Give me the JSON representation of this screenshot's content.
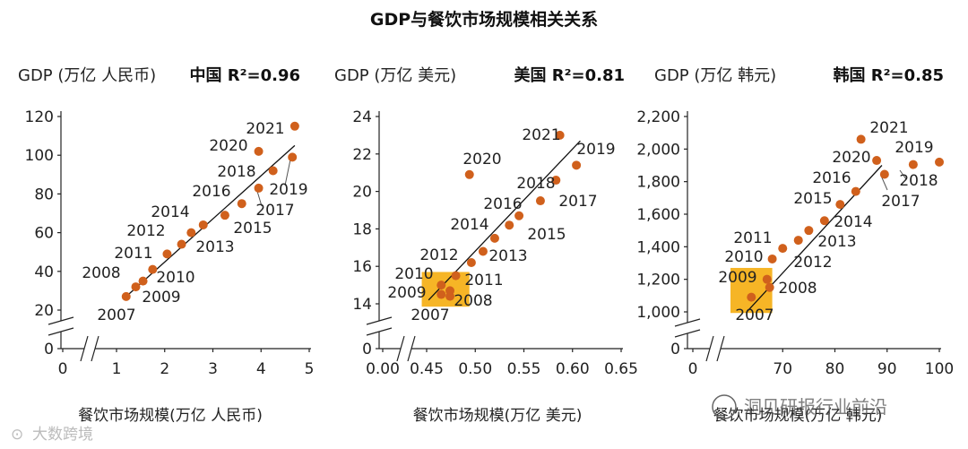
{
  "figure_title": "GDP与餐饮市场规模相关关系",
  "watermark": "洞见研报行业前沿",
  "watermark_left": "大数跨境",
  "chart_data": [
    {
      "id": "china",
      "type": "scatter",
      "ylabel": "GDP (万亿 人民币)",
      "r2_label": "中国 R²=0.96",
      "xlabel": "餐饮市场规模(万亿 人民币)",
      "x_ticks": [
        "0",
        "1",
        "2",
        "3",
        "4",
        "5"
      ],
      "y_ticks": [
        "0",
        "20",
        "40",
        "60",
        "80",
        "100",
        "120"
      ],
      "x_break": [
        0,
        1
      ],
      "y_break": [
        0,
        20
      ],
      "highlight": null,
      "fit": [
        [
          1.2,
          27
        ],
        [
          4.7,
          105
        ]
      ],
      "points": [
        {
          "year": "2007",
          "x": 1.2,
          "y": 27
        },
        {
          "year": "2008",
          "x": 1.4,
          "y": 32
        },
        {
          "year": "2009",
          "x": 1.55,
          "y": 35
        },
        {
          "year": "2010",
          "x": 1.75,
          "y": 41
        },
        {
          "year": "2011",
          "x": 2.05,
          "y": 49
        },
        {
          "year": "2012",
          "x": 2.35,
          "y": 54
        },
        {
          "year": "2013",
          "x": 2.55,
          "y": 60
        },
        {
          "year": "2014",
          "x": 2.8,
          "y": 64
        },
        {
          "year": "2015",
          "x": 3.25,
          "y": 69
        },
        {
          "year": "2016",
          "x": 3.6,
          "y": 75
        },
        {
          "year": "2017",
          "x": 3.95,
          "y": 83
        },
        {
          "year": "2018",
          "x": 4.25,
          "y": 92
        },
        {
          "year": "2019",
          "x": 4.65,
          "y": 99
        },
        {
          "year": "2020",
          "x": 3.95,
          "y": 102
        },
        {
          "year": "2021",
          "x": 4.7,
          "y": 115
        }
      ]
    },
    {
      "id": "usa",
      "type": "scatter",
      "ylabel": "GDP (万亿 美元)",
      "r2_label": "美国 R²=0.81",
      "xlabel": "餐饮市场规模(万亿 美元)",
      "x_ticks": [
        "0.00",
        "0.45",
        "0.50",
        "0.55",
        "0.60",
        "0.65"
      ],
      "y_ticks": [
        "0",
        "14",
        "16",
        "18",
        "20",
        "22",
        "24"
      ],
      "x_break": [
        0,
        0.45
      ],
      "y_break": [
        0,
        14
      ],
      "highlight": {
        "x0": 0.4,
        "x1": 0.494,
        "y0": 13.1,
        "y1": 15.7
      },
      "fit": [
        [
          0.452,
          14.2
        ],
        [
          0.608,
          22.7
        ]
      ],
      "points": [
        {
          "year": "2007",
          "x": 0.465,
          "y": 14.5
        },
        {
          "year": "2008",
          "x": 0.474,
          "y": 14.7
        },
        {
          "year": "2009",
          "x": 0.474,
          "y": 14.4
        },
        {
          "year": "2010",
          "x": 0.465,
          "y": 15.0
        },
        {
          "year": "2011",
          "x": 0.48,
          "y": 15.5
        },
        {
          "year": "2012",
          "x": 0.496,
          "y": 16.2
        },
        {
          "year": "2013",
          "x": 0.508,
          "y": 16.8
        },
        {
          "year": "2014",
          "x": 0.52,
          "y": 17.5
        },
        {
          "year": "2015",
          "x": 0.535,
          "y": 18.2
        },
        {
          "year": "2016",
          "x": 0.545,
          "y": 18.7
        },
        {
          "year": "2017",
          "x": 0.567,
          "y": 19.5
        },
        {
          "year": "2018",
          "x": 0.583,
          "y": 20.6
        },
        {
          "year": "2019",
          "x": 0.604,
          "y": 21.4
        },
        {
          "year": "2020",
          "x": 0.494,
          "y": 20.9
        },
        {
          "year": "2021",
          "x": 0.587,
          "y": 23.0
        }
      ]
    },
    {
      "id": "korea",
      "type": "scatter",
      "ylabel": "GDP (万亿 韩元)",
      "r2_label": "韩国 R²=0.85",
      "xlabel": "餐饮市场规模(万亿 韩元)",
      "x_ticks": [
        "0",
        "70",
        "80",
        "90",
        "100"
      ],
      "y_ticks": [
        "0",
        "1,000",
        "1,200",
        "1,400",
        "1,600",
        "1,800",
        "2,000",
        "2,200"
      ],
      "x_break": [
        0,
        60
      ],
      "y_break": [
        0,
        1000
      ],
      "highlight": {
        "x0": 60,
        "x1": 68,
        "y0": 970,
        "y1": 1270
      },
      "fit": [
        [
          63,
          980
        ],
        [
          89,
          1900
        ]
      ],
      "points": [
        {
          "year": "2007",
          "x": 64,
          "y": 1090
        },
        {
          "year": "2008",
          "x": 67.5,
          "y": 1150
        },
        {
          "year": "2009",
          "x": 67,
          "y": 1200
        },
        {
          "year": "2010",
          "x": 68,
          "y": 1325
        },
        {
          "year": "2011",
          "x": 70,
          "y": 1390
        },
        {
          "year": "2012",
          "x": 73,
          "y": 1440
        },
        {
          "year": "2013",
          "x": 75,
          "y": 1500
        },
        {
          "year": "2014",
          "x": 78,
          "y": 1560
        },
        {
          "year": "2015",
          "x": 81,
          "y": 1660
        },
        {
          "year": "2016",
          "x": 84,
          "y": 1740
        },
        {
          "year": "2017",
          "x": 89.5,
          "y": 1845
        },
        {
          "year": "2018",
          "x": 95,
          "y": 1905
        },
        {
          "year": "2019",
          "x": 100,
          "y": 1920
        },
        {
          "year": "2020",
          "x": 88,
          "y": 1930
        },
        {
          "year": "2021",
          "x": 85,
          "y": 2060
        }
      ]
    }
  ]
}
